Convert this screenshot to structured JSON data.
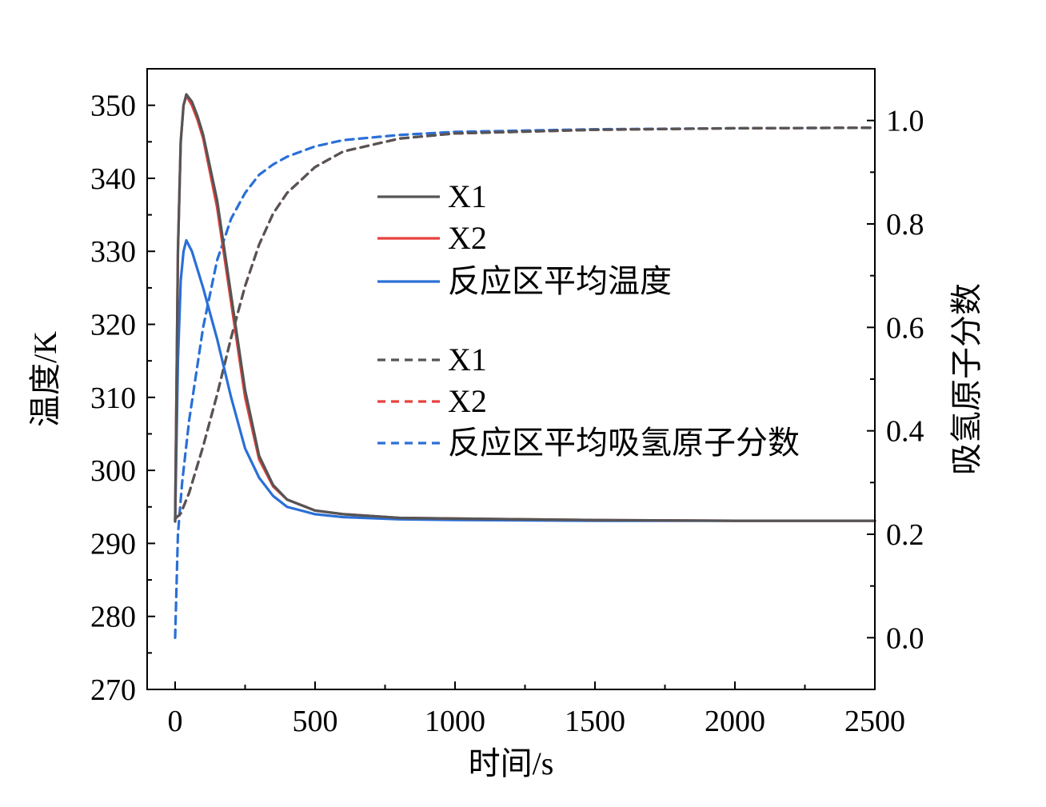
{
  "chart_data": {
    "type": "line",
    "xlabel": "时间/s",
    "ylabel": "温度/K",
    "y2label": "吸氢原子分数",
    "xlim": [
      -100,
      2500
    ],
    "xticks": [
      0,
      500,
      1000,
      1500,
      2000,
      2500
    ],
    "ylim": [
      270,
      355
    ],
    "yticks": [
      270,
      280,
      290,
      300,
      310,
      320,
      330,
      340,
      350
    ],
    "y2lim": [
      -0.1,
      1.1
    ],
    "y2ticks": [
      0.0,
      0.2,
      0.4,
      0.6,
      0.8,
      1.0
    ],
    "y2tick_labels": [
      "0.0",
      "0.2",
      "0.4",
      "0.6",
      "0.8",
      "1.0"
    ],
    "grid": false,
    "legend_position": "center",
    "series": [
      {
        "name": "X1",
        "axis": "left",
        "style": "solid",
        "color": "#555555",
        "x": [
          0,
          10,
          20,
          30,
          40,
          60,
          80,
          100,
          150,
          200,
          250,
          300,
          350,
          400,
          500,
          600,
          800,
          1000,
          1500,
          2000,
          2500
        ],
        "y": [
          293,
          330,
          345,
          350,
          351.5,
          350.5,
          348.5,
          346,
          337,
          324,
          311,
          302,
          298,
          296,
          294.5,
          294,
          293.5,
          293.4,
          293.2,
          293.1,
          293.1
        ]
      },
      {
        "name": "X2",
        "axis": "left",
        "style": "solid",
        "color": "#e8413c",
        "x": [
          0,
          10,
          20,
          30,
          40,
          60,
          80,
          100,
          150,
          200,
          250,
          300,
          350,
          400,
          500,
          600,
          800,
          1000,
          1500,
          2000,
          2500
        ],
        "y": [
          293,
          330,
          345,
          350,
          351.3,
          350,
          348,
          345.5,
          336,
          323,
          310,
          301.5,
          297.8,
          296,
          294.5,
          294,
          293.5,
          293.4,
          293.2,
          293.1,
          293.1
        ]
      },
      {
        "name": "反应区平均温度",
        "axis": "left",
        "style": "solid",
        "color": "#2a6fd6",
        "x": [
          0,
          10,
          20,
          30,
          40,
          60,
          80,
          100,
          150,
          200,
          250,
          300,
          350,
          400,
          500,
          600,
          800,
          1000,
          1500,
          2000,
          2500
        ],
        "y": [
          293,
          315,
          326,
          330,
          331.5,
          330,
          327.5,
          325,
          318,
          310,
          303,
          299,
          296.5,
          295,
          294,
          293.6,
          293.3,
          293.2,
          293.1,
          293.1,
          293.1
        ]
      },
      {
        "name": "X1",
        "axis": "right",
        "style": "dashed",
        "color": "#555555",
        "x": [
          0,
          20,
          50,
          100,
          150,
          200,
          250,
          300,
          350,
          400,
          500,
          600,
          800,
          1000,
          1500,
          2000,
          2500
        ],
        "y": [
          0.23,
          0.24,
          0.28,
          0.37,
          0.47,
          0.58,
          0.68,
          0.76,
          0.82,
          0.86,
          0.91,
          0.94,
          0.965,
          0.975,
          0.982,
          0.985,
          0.986
        ]
      },
      {
        "name": "X2",
        "axis": "right",
        "style": "dashed",
        "color": "#e8413c",
        "x": [
          0,
          20,
          50,
          100,
          150,
          200,
          250,
          300,
          350,
          400,
          500,
          600,
          800,
          1000,
          1500,
          2000,
          2500
        ],
        "y": [
          0.23,
          0.24,
          0.28,
          0.37,
          0.47,
          0.58,
          0.68,
          0.76,
          0.82,
          0.86,
          0.91,
          0.94,
          0.965,
          0.975,
          0.982,
          0.985,
          0.986
        ]
      },
      {
        "name": "反应区平均吸氢原子分数",
        "axis": "right",
        "style": "dashed",
        "color": "#2a6fd6",
        "x": [
          0,
          10,
          25,
          50,
          100,
          150,
          200,
          250,
          300,
          350,
          400,
          500,
          600,
          800,
          1000,
          1500,
          2000,
          2500
        ],
        "y": [
          0.0,
          0.2,
          0.3,
          0.42,
          0.6,
          0.73,
          0.81,
          0.86,
          0.895,
          0.915,
          0.93,
          0.95,
          0.962,
          0.972,
          0.978,
          0.983,
          0.985,
          0.986
        ]
      }
    ],
    "legend": [
      {
        "label": "X1",
        "style": "solid",
        "color": "#555555"
      },
      {
        "label": "X2",
        "style": "solid",
        "color": "#e8413c"
      },
      {
        "label": "反应区平均温度",
        "style": "solid",
        "color": "#2a6fd6"
      },
      {
        "label": "X1",
        "style": "dashed",
        "color": "#555555"
      },
      {
        "label": "X2",
        "style": "dashed",
        "color": "#e8413c"
      },
      {
        "label": "反应区平均吸氢原子分数",
        "style": "dashed",
        "color": "#2a6fd6"
      }
    ]
  }
}
